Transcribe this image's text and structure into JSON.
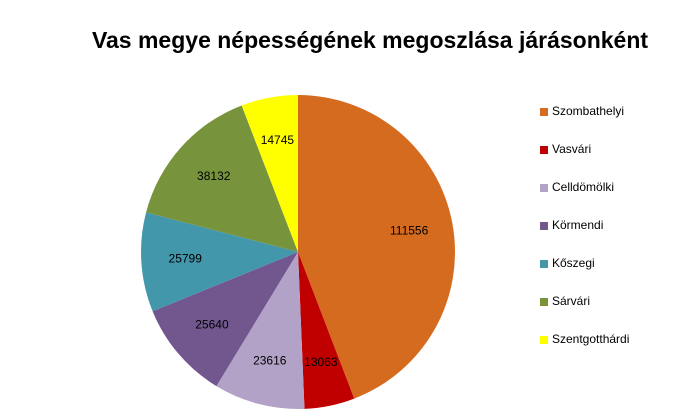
{
  "chart_data": {
    "type": "pie",
    "title": "Vas megye népességének megoszlása járásonként",
    "categories": [
      "Szombathelyi",
      "Vasvári",
      "Celldömölki",
      "Körmendi",
      "Kőszegi",
      "Sárvári",
      "Szentgotthárdi"
    ],
    "values": [
      111556,
      13063,
      23616,
      25640,
      25799,
      38132,
      14745
    ],
    "colors": [
      "#d46b1f",
      "#c00000",
      "#b3a2c7",
      "#72578f",
      "#4397ab",
      "#77933c",
      "#ffff00"
    ]
  }
}
